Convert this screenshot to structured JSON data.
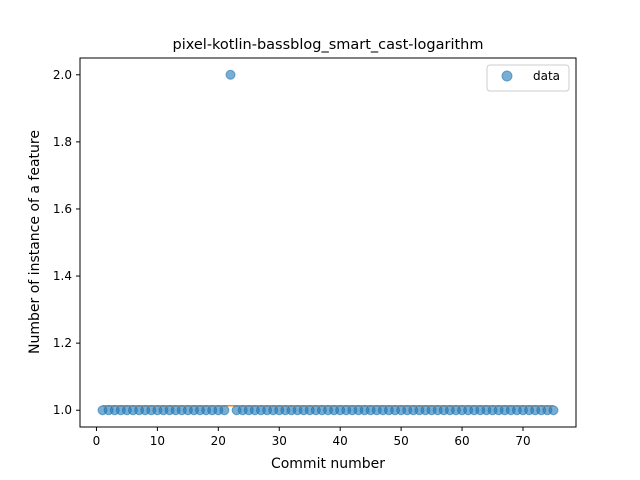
{
  "chart_data": {
    "type": "scatter",
    "title": "pixel-kotlin-bassblog_smart_cast-logarithm",
    "xlabel": "Commit number",
    "ylabel": "Number of instance of a feature",
    "xlim": [
      -2.7,
      78.7
    ],
    "ylim": [
      0.95,
      2.05
    ],
    "xticks": [
      0,
      10,
      20,
      30,
      40,
      50,
      60,
      70
    ],
    "yticks": [
      1.0,
      1.2,
      1.4,
      1.6,
      1.8,
      2.0
    ],
    "xtick_labels": [
      "0",
      "10",
      "20",
      "30",
      "40",
      "50",
      "60",
      "70"
    ],
    "ytick_labels": [
      "1.0",
      "1.2",
      "1.4",
      "1.6",
      "1.8",
      "2.0"
    ],
    "grid": false,
    "legend_position": "upper right",
    "series": [
      {
        "name": "data",
        "kind": "scatter",
        "color": "#1f77b4",
        "alpha": 0.6,
        "x": [
          1,
          2,
          3,
          4,
          5,
          6,
          7,
          8,
          9,
          10,
          11,
          12,
          13,
          14,
          15,
          16,
          17,
          18,
          19,
          20,
          21,
          22,
          23,
          24,
          25,
          26,
          27,
          28,
          29,
          30,
          31,
          32,
          33,
          34,
          35,
          36,
          37,
          38,
          39,
          40,
          41,
          42,
          43,
          44,
          45,
          46,
          47,
          48,
          49,
          50,
          51,
          52,
          53,
          54,
          55,
          56,
          57,
          58,
          59,
          60,
          61,
          62,
          63,
          64,
          65,
          66,
          67,
          68,
          69,
          70,
          71,
          72,
          73,
          74,
          75
        ],
        "y": [
          1,
          1,
          1,
          1,
          1,
          1,
          1,
          1,
          1,
          1,
          1,
          1,
          1,
          1,
          1,
          1,
          1,
          1,
          1,
          1,
          1,
          2,
          1,
          1,
          1,
          1,
          1,
          1,
          1,
          1,
          1,
          1,
          1,
          1,
          1,
          1,
          1,
          1,
          1,
          1,
          1,
          1,
          1,
          1,
          1,
          1,
          1,
          1,
          1,
          1,
          1,
          1,
          1,
          1,
          1,
          1,
          1,
          1,
          1,
          1,
          1,
          1,
          1,
          1,
          1,
          1,
          1,
          1,
          1,
          1,
          1,
          1,
          1,
          1,
          1
        ]
      },
      {
        "kind": "line",
        "color": "#ff7f0e",
        "x": [
          1,
          75
        ],
        "y": [
          1.0135,
          1.0135
        ]
      }
    ]
  }
}
